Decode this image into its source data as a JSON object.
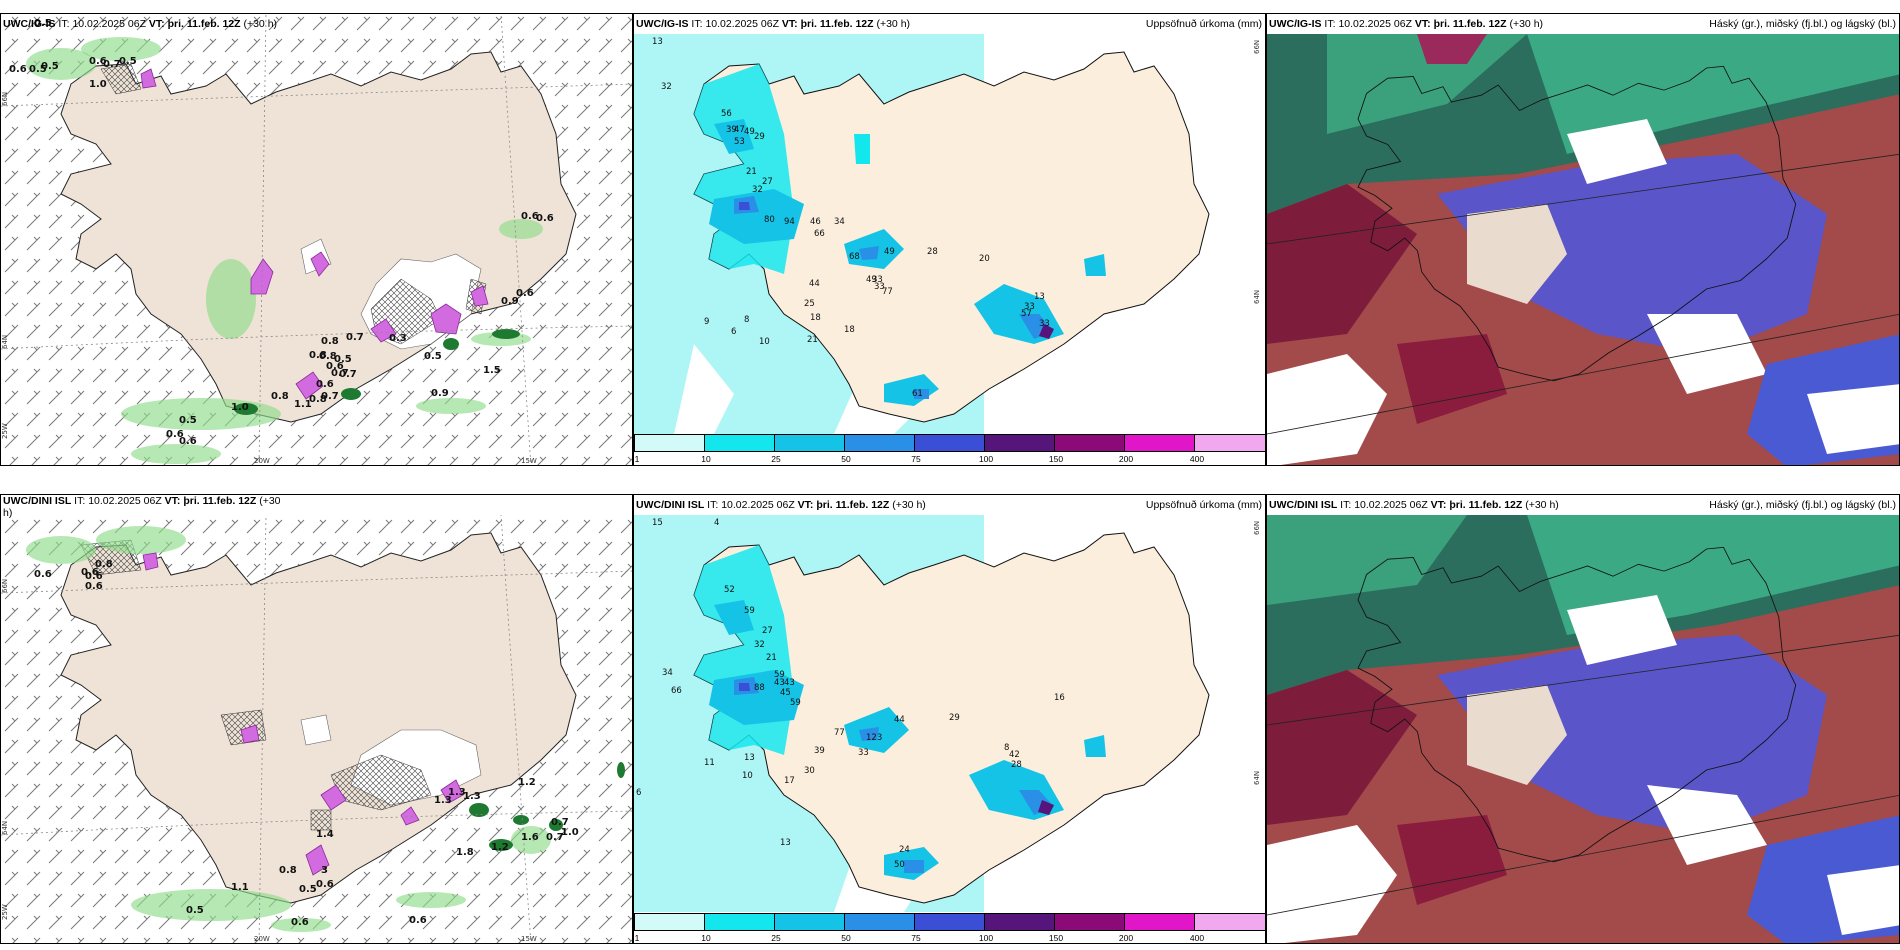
{
  "panels": [
    {
      "id": "p1",
      "model": "UWC/IG-IS",
      "it_label": "IT:",
      "it": "10.02.2025 06Z",
      "vt_label": "VT:",
      "vt": "þri. 11.feb. 12Z",
      "lead": "(+30 h)",
      "right": ""
    },
    {
      "id": "p2",
      "model": "UWC/IG-IS",
      "it_label": "IT:",
      "it": "10.02.2025 06Z",
      "vt_label": "VT:",
      "vt": "þri. 11.feb. 12Z",
      "lead": "(+30 h)",
      "right": "Uppsöfnuð úrkoma (mm)"
    },
    {
      "id": "p3",
      "model": "UWC/IG-IS",
      "it_label": "IT:",
      "it": "10.02.2025 06Z",
      "vt_label": "VT:",
      "vt": "þri. 11.feb. 12Z",
      "lead": "(+30 h)",
      "right": "Háský (gr.), miðský (fj.bl.) og lágský (bl.)"
    },
    {
      "id": "p4",
      "model": "UWC/DINI ISL",
      "it_label": "IT:",
      "it": "10.02.2025 06Z",
      "vt_label": "VT:",
      "vt": "þri. 11.feb. 12Z",
      "lead": "(+30",
      "lead2": "h)",
      "right": ""
    },
    {
      "id": "p5",
      "model": "UWC/DINI ISL",
      "it_label": "IT:",
      "it": "10.02.2025 06Z",
      "vt_label": "VT:",
      "vt": "þri. 11.feb. 12Z",
      "lead": "(+30 h)",
      "right": "Uppsöfnuð úrkoma (mm)"
    },
    {
      "id": "p6",
      "model": "UWC/DINI ISL",
      "it_label": "IT:",
      "it": "10.02.2025 06Z",
      "vt_label": "VT:",
      "vt": "þri. 11.feb. 12Z",
      "lead": "(+30 h)",
      "right": "Háský (gr.), miðský (fj.bl.) og lágský (bl.)"
    }
  ],
  "axis_labels": {
    "lat66": "66N",
    "lat64": "64N",
    "lat63": "63N",
    "w25": "25W",
    "w20": "20W",
    "w15": "15W"
  },
  "colorbar": {
    "ticks": [
      "1",
      "10",
      "25",
      "50",
      "75",
      "100",
      "150",
      "200",
      "400"
    ],
    "colors": [
      "#d2faf9",
      "#14e6ee",
      "#14c3e6",
      "#2a8fe6",
      "#3a4fd6",
      "#55157a",
      "#8c0a78",
      "#e116c8",
      "#f2a8ee"
    ]
  },
  "ig_wind_labels": [
    "0.5",
    "0.6",
    "0.5",
    "0.5",
    "0.6",
    "0.7",
    "0.5",
    "1.0",
    "0.6",
    "0.6",
    "0.8",
    "0.7",
    "0.5",
    "0.9",
    "0.6",
    "0.8",
    "0.6",
    "0.5",
    "0.7",
    "0.3",
    "0.8",
    "0.7",
    "0.7",
    "1.1",
    "0.6",
    "0.8",
    "0.9",
    "1.5",
    "0.8",
    "1.0",
    "0.5",
    "0.6",
    "0.6"
  ],
  "dini_wind_labels": [
    "0.6",
    "0.6",
    "0.6",
    "0.8",
    "0.6",
    "1.3",
    "1.3",
    "1.3",
    "1.2",
    "0.7",
    "1.0",
    "0.7",
    "1.6",
    "1.8",
    "1.2",
    "1.4",
    "0.8",
    "3",
    "0.6",
    "0.5",
    "1.1",
    "0.5",
    "0.6",
    "0.6"
  ],
  "ig_precip_labels": [
    "13",
    "56",
    "39",
    "32",
    "47",
    "49",
    "53",
    "29",
    "21",
    "27",
    "32",
    "34",
    "66",
    "46",
    "80",
    "94",
    "68",
    "49",
    "28",
    "33",
    "44",
    "33",
    "25",
    "18",
    "18",
    "21",
    "13",
    "33",
    "61",
    "33",
    "57",
    "77",
    "49",
    "20",
    "8",
    "10",
    "9",
    "6"
  ],
  "dini_precip_labels": [
    "15",
    "4",
    "52",
    "59",
    "27",
    "32",
    "21",
    "43",
    "43",
    "59",
    "66",
    "88",
    "45",
    "77",
    "123",
    "44",
    "29",
    "39",
    "33",
    "13",
    "13",
    "17",
    "30",
    "42",
    "28",
    "50",
    "16",
    "59",
    "24",
    "34",
    "6",
    "10",
    "11",
    "8"
  ]
}
